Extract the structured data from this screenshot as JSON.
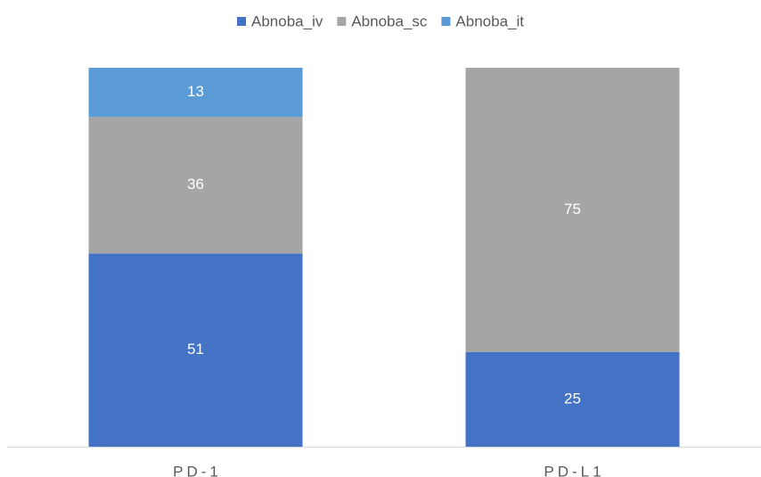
{
  "chart_data": {
    "type": "stacked-bar",
    "categories": [
      "PD-1",
      "PD-L1"
    ],
    "series": [
      {
        "name": "Abnoba_iv",
        "color": "#4472c4",
        "values": [
          51,
          25
        ]
      },
      {
        "name": "Abnoba_sc",
        "color": "#a5a5a5",
        "values": [
          36,
          75
        ]
      },
      {
        "name": "Abnoba_it",
        "color": "#5b9bd5",
        "values": [
          13,
          null
        ]
      }
    ],
    "ylim": [
      0,
      100
    ],
    "legend": "top"
  }
}
